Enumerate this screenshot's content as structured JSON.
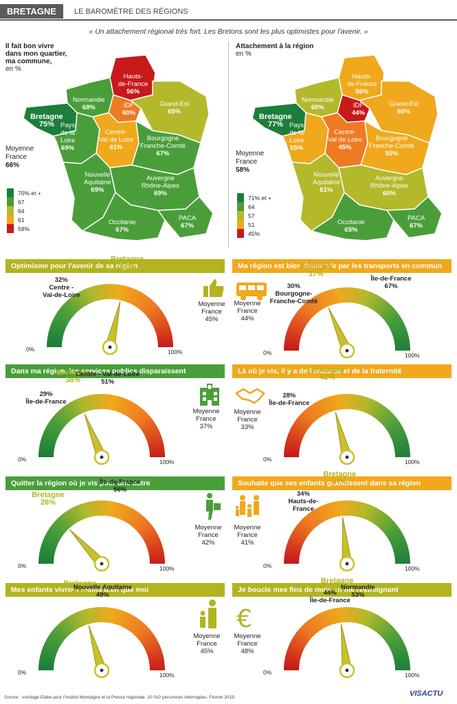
{
  "header": {
    "tag": "BRETAGNE",
    "title": "LE BAROMÈTRE DES RÉGIONS",
    "quote": "« Un attachement régional très fort. Les Bretons sont les plus optimistes pour l'avenir. »"
  },
  "colors": {
    "dark_green": "#1c7e3a",
    "green": "#4a9e3a",
    "yellow_green": "#b3b92b",
    "orange_yellow": "#f0a81c",
    "orange": "#ee7a22",
    "red": "#c8191b",
    "bretagne_accent": "#b2b420"
  },
  "map_left": {
    "title_lines": [
      "Il fait bon vivre",
      "dans mon quartier,",
      "ma commune,"
    ],
    "unit": "en %",
    "avg_label": "Moyenne",
    "avg_label2": "France",
    "avg_value": "66%",
    "regions": [
      {
        "name": "Hauts-",
        "name2": "de-France",
        "value": "56%"
      },
      {
        "name": "Normandie",
        "name2": "",
        "value": "68%"
      },
      {
        "name": "IDF",
        "name2": "",
        "value": "60%"
      },
      {
        "name": "Grand-Est",
        "name2": "",
        "value": "65%"
      },
      {
        "name": "Bretagne",
        "name2": "",
        "value": "75%"
      },
      {
        "name": "Pays",
        "name2": "de la",
        "name3": "Loire",
        "value": "69%"
      },
      {
        "name": "Centre-",
        "name2": "Val de Loire",
        "value": "61%"
      },
      {
        "name": "Bourgogne",
        "name2": "Franche-Comté",
        "value": "67%"
      },
      {
        "name": "Nouvelle",
        "name2": "Aquitaine",
        "value": "69%"
      },
      {
        "name": "Auvergne",
        "name2": "Rhône-Alpes",
        "value": "69%"
      },
      {
        "name": "Occitanie",
        "name2": "",
        "value": "67%"
      },
      {
        "name": "PACA",
        "name2": "",
        "value": "67%"
      }
    ],
    "legend": [
      "70% et +",
      "67",
      "64",
      "61",
      "58%"
    ]
  },
  "map_right": {
    "title_lines": [
      "Attachement à la région"
    ],
    "unit": "en %",
    "avg_label": "Moyenne",
    "avg_label2": "France",
    "avg_value": "58%",
    "regions": [
      {
        "name": "Hauts-",
        "name2": "de-France",
        "value": "56%"
      },
      {
        "name": "Normandie",
        "name2": "",
        "value": "60%"
      },
      {
        "name": "IDF",
        "name2": "",
        "value": "44%"
      },
      {
        "name": "Grand-Est",
        "name2": "",
        "value": "60%"
      },
      {
        "name": "Bretagne",
        "name2": "",
        "value": "77%"
      },
      {
        "name": "Pays",
        "name2": "de la",
        "name3": "Loire",
        "value": "55%"
      },
      {
        "name": "Centre-",
        "name2": "Val de Loire",
        "value": "45%"
      },
      {
        "name": "Bourgogne",
        "name2": "Franche-Comté",
        "value": "55%"
      },
      {
        "name": "Nouvelle",
        "name2": "Aquitaine",
        "value": "61%"
      },
      {
        "name": "Auvergne",
        "name2": "Rhône-Alpes",
        "value": "60%"
      },
      {
        "name": "Occitanie",
        "name2": "",
        "value": "65%"
      },
      {
        "name": "PACA",
        "name2": "",
        "value": "67%"
      }
    ],
    "legend": [
      "71% et +",
      "64",
      "57",
      "51",
      "45%"
    ]
  },
  "chart_data": [
    {
      "type": "gauge",
      "title": "Optimisme pour l'avenir de sa région",
      "title_color": "#b2b420",
      "scale": [
        0,
        100
      ],
      "min_label": "0%",
      "max_label": "100%",
      "needle": 57,
      "highlight": {
        "label": "Bretagne",
        "value": 57,
        "display": "57%"
      },
      "low": {
        "label_lines": [
          "Centre -",
          "Val-de-Loire"
        ],
        "value": 32,
        "display": "32%"
      },
      "high": null,
      "average": {
        "label": "Moyenne",
        "label2": "France",
        "value": 45,
        "display": "45%"
      },
      "icon": "thumbs-up-icon"
    },
    {
      "type": "gauge",
      "title": "Ma région est bien desservie par les transports en commun",
      "title_color": "#f0a81c",
      "scale": [
        0,
        100
      ],
      "min_label": "0%",
      "max_label": "100%",
      "needle": 37,
      "highlight": {
        "label": "Bretagne",
        "value": 37,
        "display": "37%"
      },
      "low": {
        "label_lines": [
          "Bourgogne-",
          "Franche-Comté"
        ],
        "value": 30,
        "display": "30%"
      },
      "high": {
        "label_lines": [
          "Île-de-France"
        ],
        "value": 67,
        "display": "67%"
      },
      "average": {
        "label": "Moyenne",
        "label2": "France",
        "value": 44,
        "display": "44%"
      },
      "icon": "bus-icon"
    },
    {
      "type": "gauge",
      "title": "Dans ma région,  les services publics disparaissent",
      "title_color": "#4a9e3a",
      "scale": [
        0,
        100
      ],
      "min_label": "0%",
      "max_label": "100%",
      "needle": 38,
      "highlight": {
        "label": "Bretagne",
        "value": 38,
        "display": "38%"
      },
      "low": {
        "label_lines": [
          "Île-de-France"
        ],
        "value": 29,
        "display": "29%"
      },
      "high": {
        "label_lines": [
          "Centre - Val-de-Loire"
        ],
        "value": 51,
        "display": "51%"
      },
      "average": {
        "label": "Moyenne",
        "label2": "France",
        "value": 37,
        "display": "37%"
      },
      "icon": "hospital-icon"
    },
    {
      "type": "gauge",
      "title": "Là où je vis, il y a de l'entraide et de la fraternité",
      "title_color": "#f0a81c",
      "scale": [
        0,
        100
      ],
      "min_label": "0%",
      "max_label": "100%",
      "needle": 42,
      "highlight": {
        "label": "Bretagne",
        "value": 42,
        "display": "42%"
      },
      "low": {
        "label_lines": [
          "Île-de-France"
        ],
        "value": 28,
        "display": "28%"
      },
      "high": null,
      "average": {
        "label": "Moyenne",
        "label2": "France",
        "value": 33,
        "display": "33%"
      },
      "icon": "handshake-icon"
    },
    {
      "type": "gauge",
      "title": "Quitter la région où je vis pour une autre",
      "title_color": "#4a9e3a",
      "scale": [
        0,
        100
      ],
      "min_label": "0%",
      "max_label": "100%",
      "needle": 26,
      "highlight": {
        "label": "Bretagne",
        "value": 26,
        "display": "26%"
      },
      "low": null,
      "high": {
        "label_lines": [
          "Île-de-France"
        ],
        "value": 56,
        "display": "56%"
      },
      "average": {
        "label": "Moyenne",
        "label2": "France",
        "value": 42,
        "display": "42%"
      },
      "icon": "person-moving-icon"
    },
    {
      "type": "gauge",
      "title": "Souhaite que ses enfants grandissent dans sa région",
      "title_color": "#f0a81c",
      "scale": [
        0,
        100
      ],
      "min_label": "0%",
      "max_label": "100%",
      "needle": 47,
      "highlight": {
        "label": "Bretagne",
        "value": 47,
        "display": "47%"
      },
      "low": {
        "label_lines": [
          "Hauts-de-",
          "France"
        ],
        "value": 34,
        "display": "34%"
      },
      "high": null,
      "average": {
        "label": "Moyenne",
        "label2": "France",
        "value": 41,
        "display": "41%"
      },
      "icon": "family-icon"
    },
    {
      "type": "gauge",
      "title": "Mes enfants vivront moins bien que moi",
      "title_color": "#b2b420",
      "scale": [
        0,
        100
      ],
      "min_label": "0%",
      "max_label": "100%",
      "needle": 41,
      "highlight": {
        "label": "Bretagne",
        "value": 41,
        "display": "41%"
      },
      "low": null,
      "high": {
        "label_lines": [
          "Nouvelle Aquitaine"
        ],
        "value": 49,
        "display": "49%"
      },
      "average": {
        "label": "Moyenne",
        "label2": "France",
        "value": 45,
        "display": "45%"
      },
      "icon": "parent-child-icon"
    },
    {
      "type": "gauge",
      "title": "Je boucle mes fins de mois en me restreignant",
      "title_color": "#b2b420",
      "scale": [
        0,
        100
      ],
      "min_label": "0%",
      "max_label": "100%",
      "needle": 46,
      "highlight": {
        "label": "Bretagne",
        "value": 46,
        "display": "46%"
      },
      "low": {
        "label_lines": [
          "Île-de-France"
        ],
        "value": 44,
        "display": "44%"
      },
      "high": {
        "label_lines": [
          "Normandie"
        ],
        "value": 53,
        "display": "53%"
      },
      "average": {
        "label": "Moyenne",
        "label2": "France",
        "value": 48,
        "display": "48%"
      },
      "icon": "euro-icon"
    }
  ],
  "footer": {
    "source": "Source : sondage Elabe pour l'Institut Montaigne et la Presse régionale. 10 010 personnes interrogées. Février 2019.",
    "brand": "VISACTU"
  }
}
